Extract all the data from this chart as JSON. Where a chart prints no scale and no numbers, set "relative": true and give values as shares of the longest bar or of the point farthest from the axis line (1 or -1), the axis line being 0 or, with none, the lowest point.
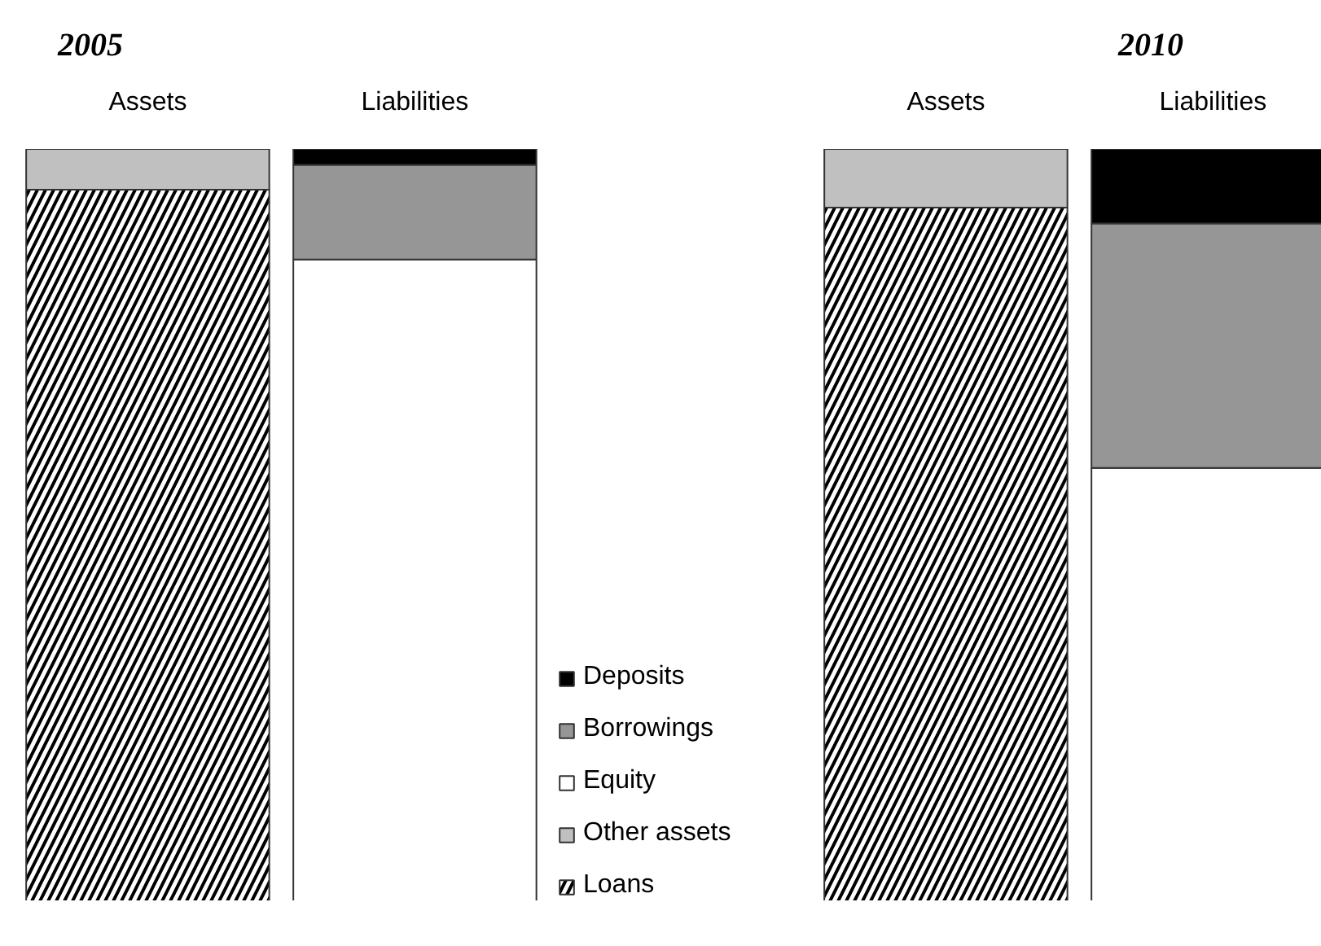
{
  "chart_data": [
    {
      "type": "bar",
      "title": "2005",
      "categories": [
        "Assets",
        "Liabilities"
      ],
      "stacked": true,
      "relative": true,
      "legend": "right",
      "series": [
        {
          "name": "Loans",
          "color": "#000000",
          "values": [
            0.946,
            null
          ]
        },
        {
          "name": "Other assets",
          "color": "#c0c0c0",
          "values": [
            0.054,
            null
          ]
        },
        {
          "name": "Equity",
          "color": "#ffffff",
          "values": [
            null,
            0.853
          ]
        },
        {
          "name": "Borrowings",
          "color": "#969696",
          "values": [
            null,
            0.126
          ]
        },
        {
          "name": "Deposits",
          "color": "#000000",
          "values": [
            null,
            0.021
          ]
        }
      ]
    },
    {
      "type": "bar",
      "title": "2010",
      "categories": [
        "Assets",
        "Liabilities"
      ],
      "stacked": true,
      "relative": true,
      "series": [
        {
          "color": "#000000",
          "values": [
            0.922,
            null
          ]
        },
        {
          "color": "#c0c0c0",
          "values": [
            0.078,
            null
          ]
        },
        {
          "color": "#ffffff",
          "values": [
            null,
            0.576
          ]
        },
        {
          "color": "#969696",
          "values": [
            null,
            0.325
          ]
        },
        {
          "color": "#000000",
          "values": [
            null,
            0.099
          ]
        }
      ]
    }
  ]
}
